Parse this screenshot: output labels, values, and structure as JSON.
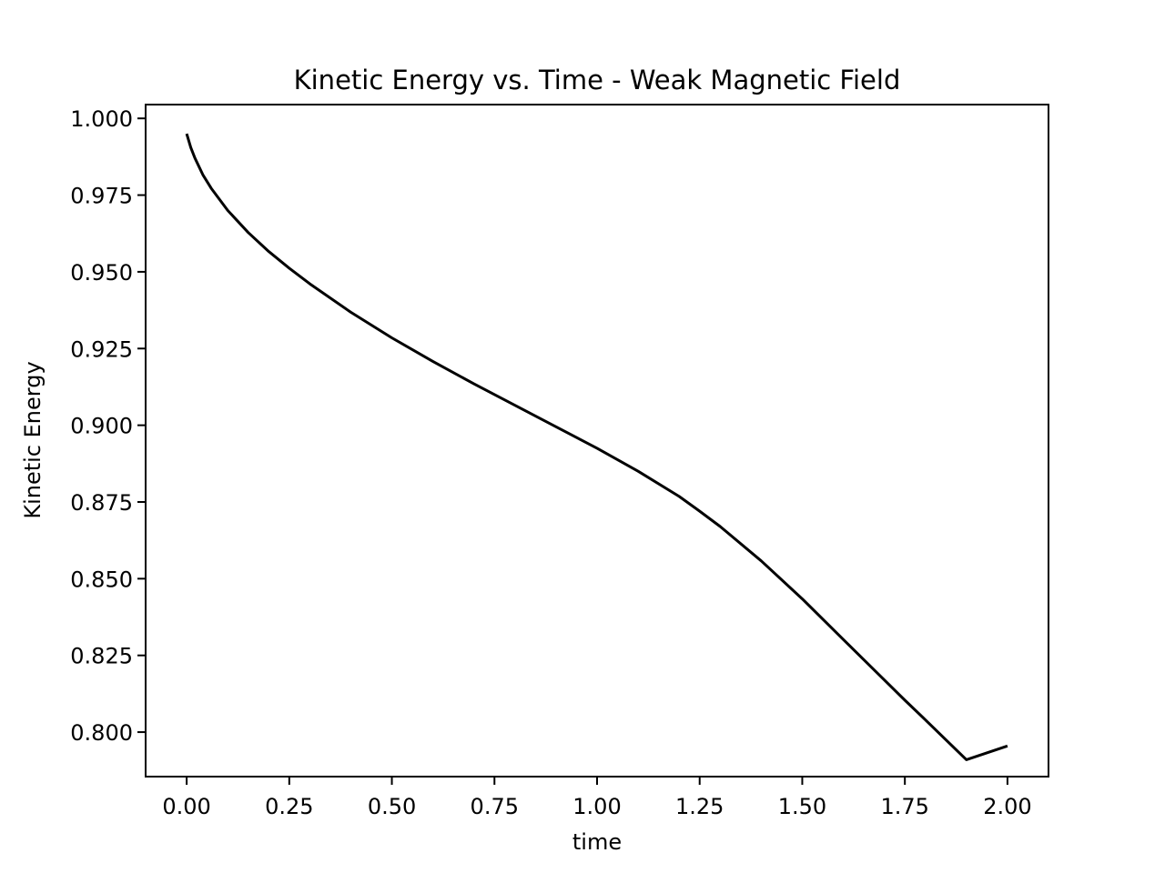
{
  "chart_data": {
    "type": "line",
    "title": "Kinetic Energy vs. Time - Weak Magnetic Field",
    "xlabel": "time",
    "ylabel": "Kinetic Energy",
    "xlim": [
      -0.1,
      2.1
    ],
    "ylim": [
      0.7855,
      1.0045
    ],
    "xticks": [
      0.0,
      0.25,
      0.5,
      0.75,
      1.0,
      1.25,
      1.5,
      1.75,
      2.0
    ],
    "xtick_labels": [
      "0.00",
      "0.25",
      "0.50",
      "0.75",
      "1.00",
      "1.25",
      "1.50",
      "1.75",
      "2.00"
    ],
    "yticks": [
      0.8,
      0.825,
      0.85,
      0.875,
      0.9,
      0.925,
      0.95,
      0.975,
      1.0
    ],
    "ytick_labels": [
      "0.800",
      "0.825",
      "0.850",
      "0.875",
      "0.900",
      "0.925",
      "0.950",
      "0.975",
      "1.000"
    ],
    "grid": false,
    "line_color": "#000000",
    "series": [
      {
        "x": [
          0.0,
          0.01,
          0.02,
          0.04,
          0.06,
          0.1,
          0.15,
          0.2,
          0.25,
          0.3,
          0.4,
          0.5,
          0.6,
          0.7,
          0.8,
          0.9,
          1.0,
          1.1,
          1.2,
          1.25,
          1.3,
          1.4,
          1.5,
          1.6,
          1.7,
          1.75,
          1.8,
          1.9,
          2.0
        ],
        "y": [
          0.995,
          0.9905,
          0.9871,
          0.9815,
          0.9772,
          0.97,
          0.9628,
          0.9566,
          0.9512,
          0.9461,
          0.9368,
          0.9285,
          0.9208,
          0.9135,
          0.9065,
          0.8995,
          0.8925,
          0.885,
          0.8768,
          0.872,
          0.867,
          0.8558,
          0.8434,
          0.8302,
          0.817,
          0.8104,
          0.804,
          0.791,
          0.7955
        ]
      }
    ]
  }
}
